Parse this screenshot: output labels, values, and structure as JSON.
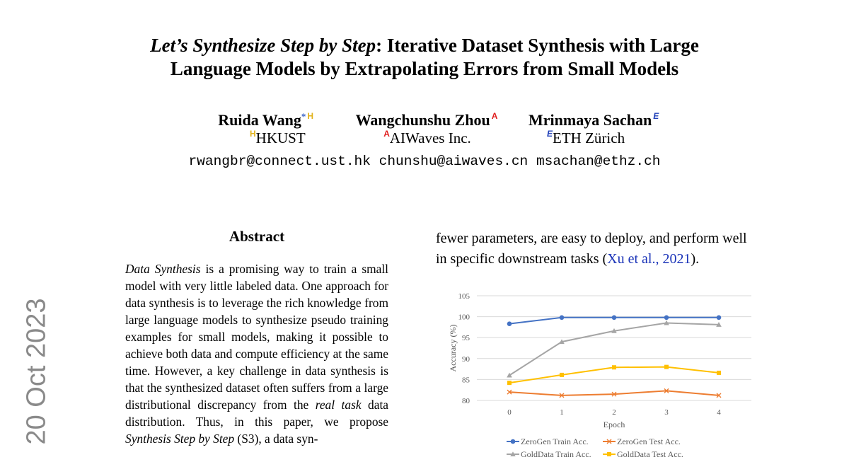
{
  "paper": {
    "title_italic": "Let’s Synthesize Step by Step",
    "title_rest_line1": ": Iterative Dataset Synthesis with Large",
    "title_line2": "Language Models by Extrapolating Errors from Small Models",
    "authors": [
      {
        "name": "Ruida Wang",
        "marker": "H",
        "star": "*"
      },
      {
        "name": "Wangchunshu Zhou",
        "marker": "A"
      },
      {
        "name": "Mrinmaya Sachan",
        "marker": "E"
      }
    ],
    "affiliations": [
      {
        "marker": "H",
        "name": "HKUST"
      },
      {
        "marker": "A",
        "name": "AIWaves Inc."
      },
      {
        "marker": "E",
        "name": "ETH Zürich"
      }
    ],
    "emails": "rwangbr@connect.ust.hk chunshu@aiwaves.cn msachan@ethz.ch",
    "arxiv_date": "20 Oct 2023",
    "abstract_heading": "Abstract",
    "abstract": {
      "p1_italic": "Data Synthesis",
      "p1": " is a promising way to train a small model with very little labeled data. One approach for data synthesis is to leverage the rich knowledge from large language models to synthesize pseudo training examples for small models, making it possible to achieve both data and compute efficiency at the same time. However, a key challenge in data synthesis is that the synthesized dataset often suffers from a large distributional discrepancy from the ",
      "p2_italic": "real task",
      "p2": " data distribution. Thus, in this paper, we propose ",
      "p3_italic": "Synthesis Step by Step",
      "p3": " (S3), a data syn-"
    },
    "right_text": {
      "before": "fewer parameters, are easy to deploy, and perform well in specific downstream tasks (",
      "cite": "Xu et al., 2021",
      "after": ")."
    }
  },
  "chart_data": {
    "type": "line",
    "xlabel": "Epoch",
    "ylabel": "Accuracy (%)",
    "x": [
      0,
      1,
      2,
      3,
      4
    ],
    "ylim": [
      80,
      105
    ],
    "yticks": [
      80,
      85,
      90,
      95,
      100,
      105
    ],
    "grid": true,
    "legend_position": "bottom",
    "series": [
      {
        "name": "ZeroGen Train Acc.",
        "color": "#4472c4",
        "marker": "circle",
        "values": [
          98.3,
          99.8,
          99.8,
          99.8,
          99.8
        ]
      },
      {
        "name": "ZeroGen Test Acc.",
        "color": "#ed7d31",
        "marker": "x",
        "values": [
          82.0,
          81.2,
          81.5,
          82.3,
          81.2
        ]
      },
      {
        "name": "GoldData Train Acc.",
        "color": "#a5a5a5",
        "marker": "triangle",
        "values": [
          86.0,
          94.0,
          96.6,
          98.5,
          98.1
        ]
      },
      {
        "name": "GoldData Test Acc.",
        "color": "#ffc000",
        "marker": "square",
        "values": [
          84.2,
          86.1,
          87.9,
          88.0,
          86.6
        ]
      }
    ]
  }
}
